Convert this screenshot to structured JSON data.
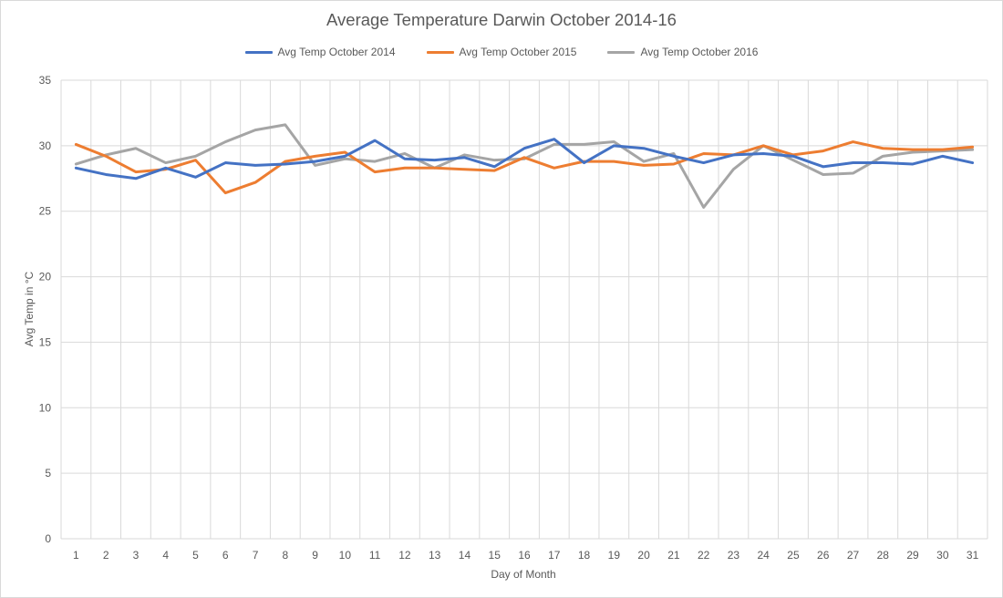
{
  "chart_data": {
    "type": "line",
    "title": "Average Temperature Darwin October 2014-16",
    "xlabel": "Day of Month",
    "ylabel": "Avg Temp in °C",
    "ylim": [
      0,
      35
    ],
    "yticks": [
      "0",
      "5",
      "10",
      "15",
      "20",
      "25",
      "30",
      "35"
    ],
    "categories": [
      "1",
      "2",
      "3",
      "4",
      "5",
      "6",
      "7",
      "8",
      "9",
      "10",
      "11",
      "12",
      "13",
      "14",
      "15",
      "16",
      "17",
      "18",
      "19",
      "20",
      "21",
      "22",
      "23",
      "24",
      "25",
      "26",
      "27",
      "28",
      "29",
      "30",
      "31"
    ],
    "grid": "vertical and horizontal",
    "legend_position": "top",
    "series": [
      {
        "name": "Avg Temp October 2014",
        "color": "#4472C4",
        "values": [
          28.3,
          27.8,
          27.5,
          28.3,
          27.6,
          28.7,
          28.5,
          28.6,
          28.8,
          29.2,
          30.4,
          29.0,
          28.9,
          29.1,
          28.4,
          29.8,
          30.5,
          28.7,
          30.0,
          29.8,
          29.2,
          28.7,
          29.3,
          29.4,
          29.2,
          28.4,
          28.7,
          28.7,
          28.6,
          29.2,
          28.7
        ]
      },
      {
        "name": "Avg Temp October 2015",
        "color": "#ED7D31",
        "values": [
          30.1,
          29.2,
          28.0,
          28.2,
          28.9,
          26.4,
          27.2,
          28.8,
          29.2,
          29.5,
          28.0,
          28.3,
          28.3,
          28.2,
          28.1,
          29.1,
          28.3,
          28.8,
          28.8,
          28.5,
          28.6,
          29.4,
          29.3,
          30.0,
          29.3,
          29.6,
          30.3,
          29.8,
          29.7,
          29.7,
          29.9
        ]
      },
      {
        "name": "Avg Temp October 2016",
        "color": "#A5A5A5",
        "values": [
          28.6,
          29.3,
          29.8,
          28.7,
          29.2,
          30.3,
          31.2,
          31.6,
          28.5,
          29.0,
          28.8,
          29.4,
          28.3,
          29.3,
          28.9,
          29.0,
          30.1,
          30.1,
          30.3,
          28.8,
          29.4,
          25.3,
          28.2,
          30.0,
          28.9,
          27.8,
          27.9,
          29.2,
          29.5,
          29.6,
          29.7
        ]
      }
    ]
  }
}
